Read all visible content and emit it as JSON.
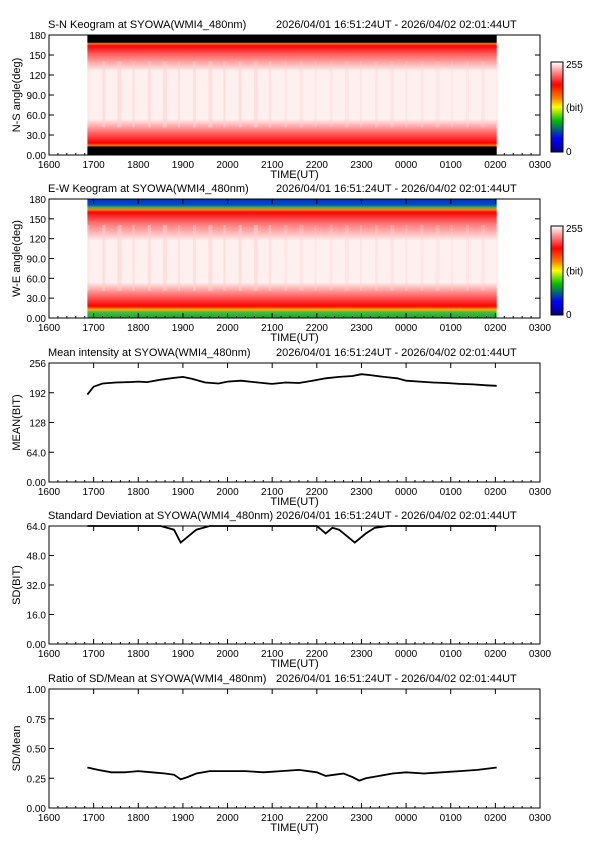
{
  "time_range": "2026/04/01 16:51:24UT - 2026/04/02 02:01:44UT",
  "x_axis": {
    "label": "TIME(UT)",
    "tick_labels": [
      "1600",
      "1700",
      "1800",
      "1900",
      "2000",
      "2100",
      "2200",
      "2300",
      "0000",
      "0100",
      "0200",
      "0300"
    ],
    "range_hours": [
      16,
      27
    ]
  },
  "colorbar": {
    "max_label": "255",
    "unit_label": "(bit)",
    "min_label": "0",
    "colors": [
      "#000080",
      "#0000ff",
      "#00c000",
      "#ffff00",
      "#ff8000",
      "#ff0000",
      "#ffffff"
    ]
  },
  "panels": {
    "sn": {
      "title": "S-N Keogram at SYOWA(WMI4_480nm)",
      "ylabel": "N-S angle(deg)",
      "yticks": [
        "180",
        "150",
        "120",
        "90.0",
        "60.0",
        "30.0",
        "0.00"
      ]
    },
    "ew": {
      "title": "E-W Keogram at SYOWA(WMI4_480nm)",
      "ylabel": "W-E angle(deg)",
      "yticks": [
        "180",
        "150",
        "120",
        "90.0",
        "60.0",
        "30.0",
        "0.00"
      ]
    },
    "mean": {
      "title": "Mean intensity at SYOWA(WMI4_480nm)",
      "ylabel": "MEAN(BIT)",
      "yticks": [
        "256",
        "192",
        "128",
        "64.0",
        "0.00"
      ]
    },
    "sd": {
      "title": "Standard Deviation at SYOWA(WMI4_480nm)",
      "ylabel": "SD(BIT)",
      "yticks": [
        "64.0",
        "48.0",
        "32.0",
        "16.0",
        "0.00"
      ]
    },
    "ratio": {
      "title": "Ratio of SD/Mean at SYOWA(WMI4_480nm)",
      "ylabel": "SD/Mean",
      "yticks": [
        "1.00",
        "0.75",
        "0.50",
        "0.25",
        "0.00"
      ]
    }
  },
  "chart_data": [
    {
      "type": "heatmap",
      "title": "S-N Keogram at SYOWA(WMI4_480nm)",
      "xlabel": "TIME(UT)",
      "ylabel": "N-S angle(deg)",
      "xlim": [
        16,
        27
      ],
      "ylim": [
        0,
        180
      ],
      "data_time_range_hours": [
        16.86,
        26.03
      ],
      "value_range": [
        0,
        255
      ],
      "colorscale": "black-blue-green-yellow-red-white",
      "description_values": {
        "edge_value": 0,
        "center_value": 255,
        "edge_rim": "red"
      }
    },
    {
      "type": "heatmap",
      "title": "E-W Keogram at SYOWA(WMI4_480nm)",
      "xlabel": "TIME(UT)",
      "ylabel": "W-E angle(deg)",
      "xlim": [
        16,
        27
      ],
      "ylim": [
        0,
        180
      ],
      "data_time_range_hours": [
        16.86,
        26.03
      ],
      "value_range": [
        0,
        255
      ],
      "colorscale": "black-blue-green-yellow-red-white",
      "description_values": {
        "top_edge": "blue",
        "bottom_edge": "green",
        "center_value": 255
      }
    },
    {
      "type": "line",
      "title": "Mean intensity at SYOWA(WMI4_480nm)",
      "xlabel": "TIME(UT)",
      "ylabel": "MEAN(BIT)",
      "xlim": [
        16,
        27
      ],
      "ylim": [
        0,
        256
      ],
      "series": [
        {
          "x": [
            16.86,
            17.0,
            17.2,
            17.5,
            17.8,
            18.0,
            18.2,
            18.5,
            18.8,
            19.0,
            19.2,
            19.5,
            19.8,
            20.0,
            20.3,
            20.6,
            20.9,
            21.0,
            21.3,
            21.6,
            21.9,
            22.2,
            22.5,
            22.8,
            23.0,
            23.2,
            23.5,
            23.8,
            24.0,
            24.3,
            24.6,
            24.9,
            25.2,
            25.5,
            25.8,
            26.03
          ],
          "y": [
            188,
            205,
            212,
            214,
            215,
            216,
            215,
            220,
            224,
            226,
            222,
            214,
            212,
            216,
            218,
            215,
            212,
            211,
            214,
            213,
            218,
            223,
            226,
            228,
            232,
            230,
            226,
            223,
            218,
            216,
            214,
            213,
            211,
            210,
            208,
            207
          ]
        }
      ]
    },
    {
      "type": "line",
      "title": "Standard Deviation at SYOWA(WMI4_480nm)",
      "xlabel": "TIME(UT)",
      "ylabel": "SD(BIT)",
      "xlim": [
        16,
        27
      ],
      "ylim": [
        0,
        64
      ],
      "series": [
        {
          "x": [
            16.86,
            17.5,
            18.0,
            18.5,
            18.8,
            18.95,
            19.1,
            19.3,
            19.6,
            20.0,
            20.5,
            21.0,
            21.5,
            22.0,
            22.1,
            22.2,
            22.35,
            22.5,
            22.7,
            22.85,
            22.95,
            23.1,
            23.3,
            23.6,
            24.0,
            24.5,
            25.0,
            25.5,
            26.03
          ],
          "y": [
            64,
            64,
            64,
            64,
            62,
            55,
            58,
            62,
            64,
            64,
            64,
            64,
            64,
            64,
            62,
            60,
            63,
            62,
            58,
            55,
            57,
            60,
            63,
            64,
            64,
            64,
            64,
            64,
            64
          ]
        }
      ]
    },
    {
      "type": "line",
      "title": "Ratio of SD/Mean at SYOWA(WMI4_480nm)",
      "xlabel": "TIME(UT)",
      "ylabel": "SD/Mean",
      "xlim": [
        16,
        27
      ],
      "ylim": [
        0,
        1
      ],
      "series": [
        {
          "x": [
            16.86,
            17.1,
            17.4,
            17.7,
            18.0,
            18.3,
            18.6,
            18.8,
            18.95,
            19.1,
            19.3,
            19.6,
            20.0,
            20.4,
            20.8,
            21.2,
            21.6,
            22.0,
            22.2,
            22.4,
            22.6,
            22.8,
            22.95,
            23.1,
            23.4,
            23.7,
            24.0,
            24.4,
            24.8,
            25.2,
            25.6,
            26.03
          ],
          "y": [
            0.34,
            0.32,
            0.3,
            0.3,
            0.31,
            0.3,
            0.29,
            0.28,
            0.24,
            0.26,
            0.29,
            0.31,
            0.31,
            0.31,
            0.3,
            0.31,
            0.32,
            0.3,
            0.27,
            0.28,
            0.29,
            0.26,
            0.23,
            0.25,
            0.27,
            0.29,
            0.3,
            0.29,
            0.3,
            0.31,
            0.32,
            0.34
          ]
        }
      ]
    }
  ]
}
